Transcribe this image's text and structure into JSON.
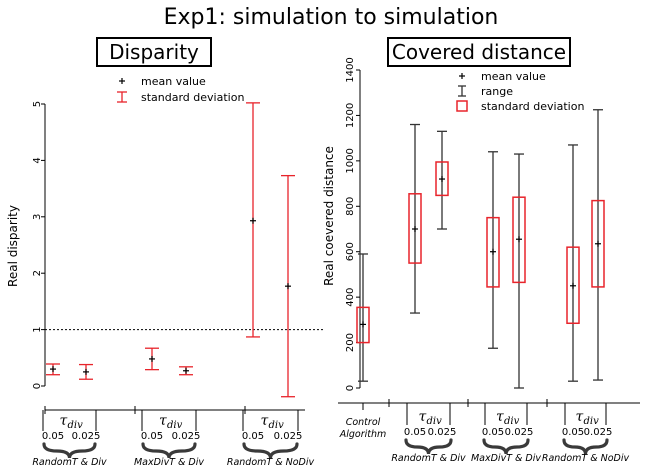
{
  "figure_title": "Exp1: simulation to simulation",
  "chart_data": [
    {
      "type": "errorbar",
      "title": "Disparity",
      "xlabel": "",
      "ylabel": "Real disparity",
      "ylim": [
        -0.25,
        5.25
      ],
      "yticks": [
        0,
        1,
        2,
        3,
        4,
        5
      ],
      "reference_line": {
        "y": 1,
        "style": "dotted"
      },
      "legend": {
        "position": "top-center",
        "entries": [
          "mean value",
          "standard deviation"
        ]
      },
      "tau_symbol": "τ",
      "tau_subscript": "div",
      "groups": [
        {
          "label": "RandomT & Div",
          "taus": [
            "0.05",
            "0.025"
          ]
        },
        {
          "label": "MaxDivT & Div",
          "taus": [
            "0.05",
            "0.025"
          ]
        },
        {
          "label": "RandomT & NoDiv",
          "taus": [
            "0.05",
            "0.025"
          ]
        }
      ],
      "points": [
        {
          "group": "RandomT & Div",
          "tau": "0.05",
          "mean": 0.3,
          "sd_low": 0.2,
          "sd_high": 0.39
        },
        {
          "group": "RandomT & Div",
          "tau": "0.025",
          "mean": 0.25,
          "sd_low": 0.12,
          "sd_high": 0.38
        },
        {
          "group": "MaxDivT & Div",
          "tau": "0.05",
          "mean": 0.48,
          "sd_low": 0.29,
          "sd_high": 0.67
        },
        {
          "group": "MaxDivT & Div",
          "tau": "0.025",
          "mean": 0.27,
          "sd_low": 0.2,
          "sd_high": 0.34
        },
        {
          "group": "RandomT & NoDiv",
          "tau": "0.05",
          "mean": 2.93,
          "sd_low": 0.87,
          "sd_high": 5.02
        },
        {
          "group": "RandomT & NoDiv",
          "tau": "0.025",
          "mean": 1.77,
          "sd_low": -0.19,
          "sd_high": 3.73
        }
      ]
    },
    {
      "type": "boxplot",
      "title": "Covered distance",
      "xlabel": "",
      "ylabel": "Real coevered distance",
      "ylim": [
        -50,
        1450
      ],
      "yticks": [
        0,
        200,
        400,
        600,
        800,
        1000,
        1200,
        1400
      ],
      "legend": {
        "position": "top-center",
        "entries": [
          "mean value",
          "range",
          "standard deviation"
        ]
      },
      "tau_symbol": "τ",
      "tau_subscript": "div",
      "control": {
        "label_line1": "Control",
        "label_line2": "Algorithm",
        "mean": 280,
        "min": 30,
        "max": 590,
        "sd_low": 200,
        "sd_high": 355
      },
      "groups": [
        {
          "label": "RandomT & Div",
          "taus": [
            "0.05",
            "0.025"
          ]
        },
        {
          "label": "MaxDivT & Div",
          "taus": [
            "0.05",
            "0.025"
          ]
        },
        {
          "label": "RandomT & NoDiv",
          "taus": [
            "0.05",
            "0.025"
          ]
        }
      ],
      "points": [
        {
          "group": "RandomT & Div",
          "tau": "0.05",
          "mean": 700,
          "min": 330,
          "max": 1160,
          "sd_low": 550,
          "sd_high": 855
        },
        {
          "group": "RandomT & Div",
          "tau": "0.025",
          "mean": 920,
          "min": 700,
          "max": 1130,
          "sd_low": 848,
          "sd_high": 995
        },
        {
          "group": "MaxDivT & Div",
          "tau": "0.05",
          "mean": 600,
          "min": 175,
          "max": 1040,
          "sd_low": 445,
          "sd_high": 750
        },
        {
          "group": "MaxDivT & Div",
          "tau": "0.025",
          "mean": 655,
          "min": 0,
          "max": 1030,
          "sd_low": 465,
          "sd_high": 840
        },
        {
          "group": "RandomT & NoDiv",
          "tau": "0.05",
          "mean": 450,
          "min": 30,
          "max": 1070,
          "sd_low": 285,
          "sd_high": 620
        },
        {
          "group": "RandomT & NoDiv",
          "tau": "0.025",
          "mean": 635,
          "min": 35,
          "max": 1225,
          "sd_low": 445,
          "sd_high": 825
        }
      ]
    }
  ],
  "colors": {
    "sd": "#e8242b",
    "range": "#333333",
    "ink": "#000000",
    "brace": "#3a3a3a"
  }
}
